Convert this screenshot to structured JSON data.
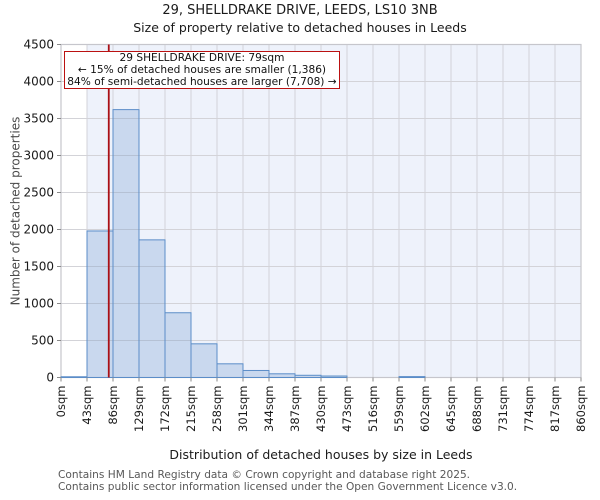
{
  "chart_data": {
    "type": "bar",
    "title": "29, SHELLDRAKE DRIVE, LEEDS, LS10 3NB",
    "subtitle": "Size of property relative to detached houses in Leeds",
    "xlabel": "Distribution of detached houses by size in Leeds",
    "ylabel": "Number of detached properties",
    "categories": [
      "0sqm",
      "43sqm",
      "86sqm",
      "129sqm",
      "172sqm",
      "215sqm",
      "258sqm",
      "301sqm",
      "344sqm",
      "387sqm",
      "430sqm",
      "473sqm",
      "516sqm",
      "559sqm",
      "602sqm",
      "645sqm",
      "688sqm",
      "731sqm",
      "774sqm",
      "817sqm",
      "860sqm"
    ],
    "values": [
      10,
      1980,
      3620,
      1860,
      875,
      455,
      185,
      95,
      50,
      30,
      20,
      0,
      0,
      12,
      0,
      0,
      0,
      0,
      0,
      0
    ],
    "bin_width_sqm": 43,
    "x_max_sqm": 860,
    "ylim": [
      0,
      4500
    ],
    "y_ticks": [
      0,
      500,
      1000,
      1500,
      2000,
      2500,
      3000,
      3500,
      4000,
      4500
    ],
    "grid": "on",
    "legend": "none",
    "shaded_region": {
      "from_sqm": 43,
      "to_sqm": 860
    },
    "marker_line": {
      "sqm": 79,
      "color": "#aa1016"
    },
    "annotation": {
      "line1": "29 SHELLDRAKE DRIVE: 79sqm",
      "line2": "← 15% of detached houses are smaller (1,386)",
      "line3": "84% of semi-detached houses are larger (7,708) →"
    },
    "colors": {
      "bar_fill": "rgba(91,141,200,0.25)",
      "bar_edge": "#5b8dc8",
      "band": "#eef2fb",
      "grid": "#d3d3d8",
      "axis_border": "#c6c6cc",
      "tick_text": "#1a1a1a"
    }
  },
  "footer": {
    "line1": "Contains HM Land Registry data © Crown copyright and database right 2025.",
    "line2": "Contains public sector information licensed under the Open Government Licence v3.0."
  }
}
